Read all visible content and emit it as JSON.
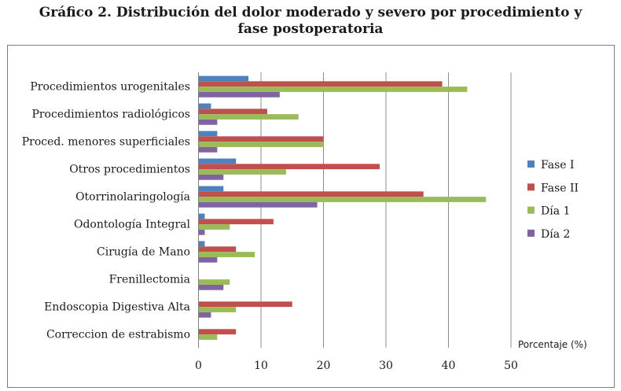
{
  "title_line1": "Gráfico 2. Distribución del dolor moderado y severo por procedimiento y",
  "title_line2": "fase postoperatoria",
  "chart_data": {
    "type": "bar",
    "orientation": "horizontal",
    "title": "Gráfico 2. Distribución del dolor moderado y severo por procedimiento y fase postoperatoria",
    "categories": [
      "Procedimientos urogenitales",
      "Procedimientos radiológicos",
      "Proced. menores superficiales",
      "Otros procedimientos",
      "Otorrinolaringología",
      "Odontología Integral",
      "Cirugía de Mano",
      "Frenillectomia",
      "Endoscopia Digestiva Alta",
      "Correccion de estrabismo"
    ],
    "series": [
      {
        "name": "Fase I",
        "color": "#4F81BD",
        "values": [
          8,
          2,
          3,
          6,
          4,
          1,
          1,
          0,
          0,
          0
        ]
      },
      {
        "name": "Fase II",
        "color": "#C0504D",
        "values": [
          39,
          11,
          20,
          29,
          36,
          12,
          6,
          0,
          15,
          6
        ]
      },
      {
        "name": "Día 1",
        "color": "#9BBB59",
        "values": [
          43,
          16,
          20,
          14,
          46,
          5,
          9,
          5,
          6,
          3
        ]
      },
      {
        "name": "Día 2",
        "color": "#8064A2",
        "values": [
          13,
          3,
          3,
          4,
          19,
          1,
          3,
          4,
          2,
          0
        ]
      }
    ],
    "xlabel": "Porcentaje (%)",
    "ylabel": "",
    "xlim": [
      0,
      50
    ],
    "xticks": [
      0,
      10,
      20,
      30,
      40,
      50
    ],
    "grid": "vertical",
    "legend": "right"
  }
}
